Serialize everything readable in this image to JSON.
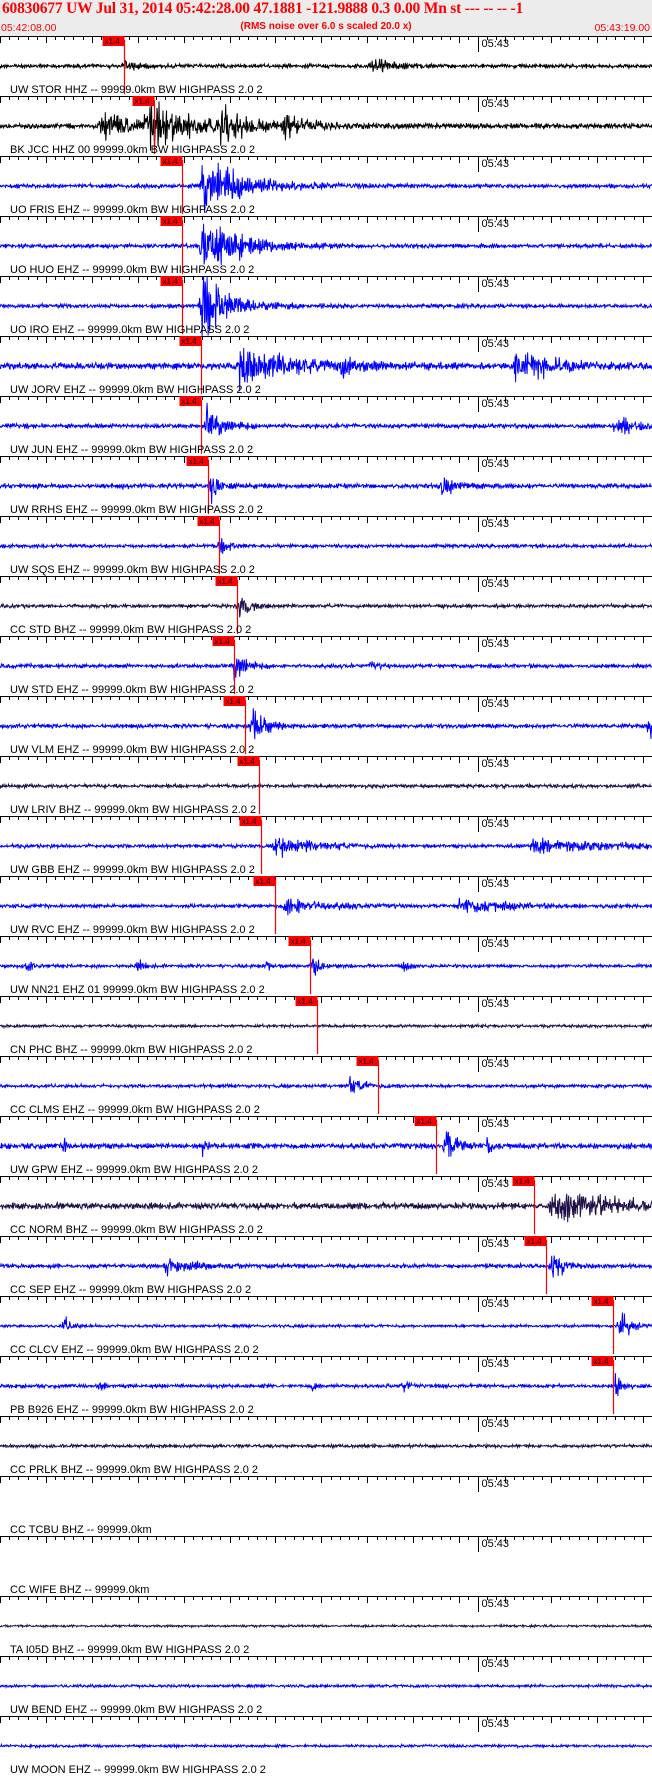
{
  "header": {
    "title": "60830677 UW Jul 31, 2014 05:42:28.00   47.1881 -121.9888  0.3 0.00 Mn st --- -- --  -1",
    "subtitle": "(RMS noise over 6.0 s scaled 20.0 x)",
    "start_time": "05:42:08.00",
    "end_time": "05:43:19.00"
  },
  "colors": {
    "header_text": "#ff0000",
    "header_bg": "#ececec",
    "trace_blue": "#0000ff",
    "trace_black": "#000000",
    "trace_navy": "#20104a",
    "pick_line": "#ff0000",
    "pick_box": "#ff0000"
  },
  "chart_data": {
    "type": "line",
    "subtype": "seismogram-record-section",
    "time_start": "05:42:08.00",
    "time_end": "05:43:19.00",
    "time_span_s": 71,
    "minute_marker_label": "05:43",
    "minute_marker_s": 52,
    "tick_interval_s": 1,
    "pick_label": "x1.4",
    "traces": [
      {
        "label": "UW STOR HHZ -- 99999.0km BW  HIGHPASS  2.0  2",
        "color": "black",
        "amp": 0.22,
        "pick_s": 13.5,
        "events": [
          {
            "t": 13.5,
            "a": 1.0,
            "d": 1.5
          },
          {
            "t": 40.5,
            "a": 0.9,
            "d": 3
          }
        ]
      },
      {
        "label": "BK JCC HHZ 00 99999.0km BW  HIGHPASS  2.0  2",
        "color": "black",
        "amp": 0.3,
        "pick_s": 16.8,
        "events": [
          {
            "t": 11,
            "a": 1.5,
            "d": 8
          },
          {
            "t": 16,
            "a": 2.5,
            "d": 6
          },
          {
            "t": 24,
            "a": 1.8,
            "d": 5
          },
          {
            "t": 31,
            "a": 1.5,
            "d": 3
          }
        ]
      },
      {
        "label": "UO FRIS EHZ -- 99999.0km BW  HIGHPASS  2.0  2",
        "color": "blue",
        "amp": 0.22,
        "pick_s": 19.8,
        "events": [
          {
            "t": 22,
            "a": 3.5,
            "d": 7
          }
        ]
      },
      {
        "label": "UO HUO EHZ -- 99999.0km BW  HIGHPASS  2.0  2",
        "color": "blue",
        "amp": 0.22,
        "pick_s": 19.8,
        "events": [
          {
            "t": 22,
            "a": 3.5,
            "d": 6
          }
        ]
      },
      {
        "label": "UO IRO EHZ -- 99999.0km BW  HIGHPASS  2.0  2",
        "color": "blue",
        "amp": 0.22,
        "pick_s": 19.8,
        "events": [
          {
            "t": 22,
            "a": 3.5,
            "d": 5
          }
        ]
      },
      {
        "label": "UW JORV EHZ -- 99999.0km BW  HIGHPASS  2.0  2",
        "color": "blue",
        "amp": 0.35,
        "pick_s": 21.9,
        "events": [
          {
            "t": 26,
            "a": 2.2,
            "d": 9
          },
          {
            "t": 56,
            "a": 1.6,
            "d": 7
          },
          {
            "t": 37,
            "a": 0.8,
            "d": 3
          }
        ]
      },
      {
        "label": "UW JUN EHZ -- 99999.0km BW  HIGHPASS  2.0  2",
        "color": "blue",
        "amp": 0.25,
        "pick_s": 21.9,
        "events": [
          {
            "t": 22.5,
            "a": 2.0,
            "d": 2.5
          },
          {
            "t": 67,
            "a": 1.2,
            "d": 3
          }
        ]
      },
      {
        "label": "UW RRHS EHZ -- 99999.0km BW  HIGHPASS  2.0  2",
        "color": "blue",
        "amp": 0.25,
        "pick_s": 22.7,
        "events": [
          {
            "t": 23,
            "a": 1.5,
            "d": 1.5
          },
          {
            "t": 48,
            "a": 0.9,
            "d": 3
          }
        ]
      },
      {
        "label": "UW SQS EHZ -- 99999.0km BW  HIGHPASS  2.0  2",
        "color": "blue",
        "amp": 0.2,
        "pick_s": 23.8,
        "events": [
          {
            "t": 24,
            "a": 0.9,
            "d": 1.5
          }
        ]
      },
      {
        "label": "CC STD BHZ -- 99999.0km BW  HIGHPASS  2.0  2",
        "color": "navy",
        "amp": 0.2,
        "pick_s": 25.8,
        "events": [
          {
            "t": 26,
            "a": 1.2,
            "d": 2
          }
        ]
      },
      {
        "label": "UW STD EHZ -- 99999.0km BW  HIGHPASS  2.0  2",
        "color": "blue",
        "amp": 0.22,
        "pick_s": 25.5,
        "events": [
          {
            "t": 25.5,
            "a": 1.4,
            "d": 2
          },
          {
            "t": 40.5,
            "a": 0.7,
            "d": 0.8
          }
        ]
      },
      {
        "label": "UW VLM EHZ -- 99999.0km BW  HIGHPASS  2.0  2",
        "color": "blue",
        "amp": 0.22,
        "pick_s": 26.7,
        "events": [
          {
            "t": 27.5,
            "a": 2.5,
            "d": 2
          },
          {
            "t": 70.8,
            "a": 2.5,
            "d": 0.4
          }
        ]
      },
      {
        "label": "UW LRIV BHZ -- 99999.0km BW  HIGHPASS  2.0  2",
        "color": "navy",
        "amp": 0.2,
        "pick_s": 28.2,
        "events": []
      },
      {
        "label": "UW GBB EHZ -- 99999.0km BW  HIGHPASS  2.0  2",
        "color": "blue",
        "amp": 0.2,
        "pick_s": 28.4,
        "events": [
          {
            "t": 30,
            "a": 1.2,
            "d": 6
          },
          {
            "t": 58,
            "a": 0.8,
            "d": 12
          }
        ]
      },
      {
        "label": "UW RVC EHZ -- 99999.0km BW  HIGHPASS  2.0  2",
        "color": "blue",
        "amp": 0.2,
        "pick_s": 30.0,
        "events": [
          {
            "t": 31,
            "a": 1.1,
            "d": 6
          },
          {
            "t": 50,
            "a": 0.8,
            "d": 8
          }
        ]
      },
      {
        "label": "UW NN21 EHZ 01 99999.0km BW  HIGHPASS  2.0  2",
        "color": "blue",
        "amp": 0.18,
        "pick_s": 33.8,
        "events": [
          {
            "t": 34,
            "a": 1.6,
            "d": 1.2
          },
          {
            "t": 3,
            "a": 0.8,
            "d": 0.8
          },
          {
            "t": 15,
            "a": 0.8,
            "d": 0.8
          },
          {
            "t": 29,
            "a": 0.8,
            "d": 0.8
          },
          {
            "t": 44,
            "a": 0.8,
            "d": 0.8
          }
        ]
      },
      {
        "label": "CN PHC BHZ -- 99999.0km BW  HIGHPASS  2.0  2",
        "color": "navy",
        "amp": 0.16,
        "pick_s": 34.5,
        "events": []
      },
      {
        "label": "CC CLMS EHZ -- 99999.0km BW  HIGHPASS  2.0  2",
        "color": "blue",
        "amp": 0.18,
        "pick_s": 41.2,
        "events": [
          {
            "t": 38,
            "a": 0.8,
            "d": 3
          }
        ]
      },
      {
        "label": "UW GPW EHZ -- 99999.0km BW  HIGHPASS  2.0  2",
        "color": "blue",
        "amp": 0.3,
        "pick_s": 47.5,
        "events": [
          {
            "t": 48.5,
            "a": 2.0,
            "d": 2
          },
          {
            "t": 53,
            "a": 1.2,
            "d": 0.8
          },
          {
            "t": 7,
            "a": 1.0,
            "d": 0.5
          },
          {
            "t": 22,
            "a": 1.0,
            "d": 0.5
          }
        ]
      },
      {
        "label": "CC NORM BHZ -- 99999.0km BW  HIGHPASS  2.0  2",
        "color": "navy",
        "amp": 0.35,
        "pick_s": 58.2,
        "events": [
          {
            "t": 60,
            "a": 2.0,
            "d": 11
          }
        ]
      },
      {
        "label": "CC SEP EHZ -- 99999.0km BW  HIGHPASS  2.0  2",
        "color": "blue",
        "amp": 0.22,
        "pick_s": 59.5,
        "events": [
          {
            "t": 60,
            "a": 1.8,
            "d": 2
          },
          {
            "t": 18,
            "a": 0.8,
            "d": 6
          }
        ]
      },
      {
        "label": "CC CLCV EHZ -- 99999.0km BW  HIGHPASS  2.0  2",
        "color": "blue",
        "amp": 0.15,
        "pick_s": 66.8,
        "events": [
          {
            "t": 67.5,
            "a": 1.6,
            "d": 2
          },
          {
            "t": 7,
            "a": 1.0,
            "d": 1
          }
        ]
      },
      {
        "label": "PB B926 EHZ -- 99999.0km BW  HIGHPASS  2.0  2",
        "color": "blue",
        "amp": 0.2,
        "pick_s": 66.8,
        "events": [
          {
            "t": 67,
            "a": 2.0,
            "d": 1
          },
          {
            "t": 11,
            "a": 1.2,
            "d": 0.5
          },
          {
            "t": 34,
            "a": 1.0,
            "d": 0.5
          },
          {
            "t": 44,
            "a": 1.2,
            "d": 0.5
          }
        ]
      },
      {
        "label": "CC PRLK BHZ -- 99999.0km BW  HIGHPASS  2.0  2",
        "color": "navy",
        "amp": 0.18,
        "pick_s": null,
        "events": []
      },
      {
        "label": "CC TCBU BHZ -- 99999.0km",
        "color": "none",
        "amp": 0,
        "pick_s": null,
        "events": []
      },
      {
        "label": "CC WIFE BHZ -- 99999.0km",
        "color": "none",
        "amp": 0,
        "pick_s": null,
        "events": []
      },
      {
        "label": "TA I05D BHZ -- 99999.0km BW  HIGHPASS  2.0  2",
        "color": "navy",
        "amp": 0.12,
        "pick_s": null,
        "events": []
      },
      {
        "label": "UW BEND EHZ -- 99999.0km BW  HIGHPASS  2.0  2",
        "color": "blue",
        "amp": 0.15,
        "pick_s": null,
        "events": []
      },
      {
        "label": "UW MOON EHZ -- 99999.0km BW  HIGHPASS  2.0  2",
        "color": "blue",
        "amp": 0.15,
        "pick_s": null,
        "events": []
      }
    ]
  }
}
